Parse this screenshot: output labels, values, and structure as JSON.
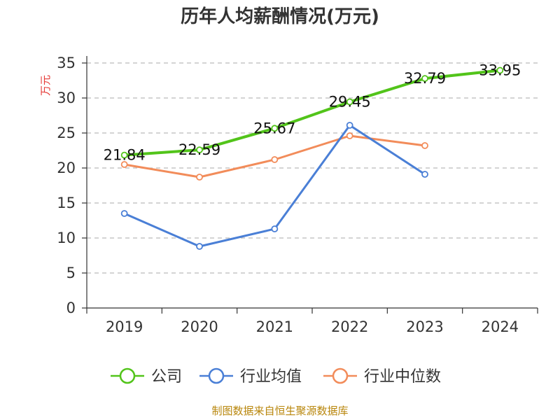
{
  "chart_data": {
    "type": "line",
    "title": "历年人均薪酬情况(万元)",
    "ylabel": "万元",
    "xlabel": "",
    "ylim": [
      0,
      35
    ],
    "yticks": [
      0,
      5,
      10,
      15,
      20,
      25,
      30,
      35
    ],
    "categories": [
      "2019",
      "2020",
      "2021",
      "2022",
      "2023",
      "2024"
    ],
    "series": [
      {
        "name": "公司",
        "color": "#52c41a",
        "values": [
          21.84,
          22.59,
          25.67,
          29.45,
          32.79,
          33.95
        ],
        "labels": [
          "21.84",
          "22.59",
          "25.67",
          "29.45",
          "32.79",
          "33.95"
        ]
      },
      {
        "name": "行业均值",
        "color": "#4a7fd6",
        "values": [
          13.5,
          8.8,
          11.3,
          26.1,
          19.1,
          null
        ]
      },
      {
        "name": "行业中位数",
        "color": "#f28c5a",
        "values": [
          20.5,
          18.7,
          21.2,
          24.6,
          23.2,
          null
        ]
      }
    ],
    "grid": true,
    "legend_position": "bottom"
  },
  "colors": {
    "title": "#333333",
    "ylabel": "#e53935",
    "source": "#b8860b",
    "grid": "#bbbbbb",
    "axis": "#333333"
  },
  "footer": {
    "source": "制图数据来自恒生聚源数据库"
  }
}
